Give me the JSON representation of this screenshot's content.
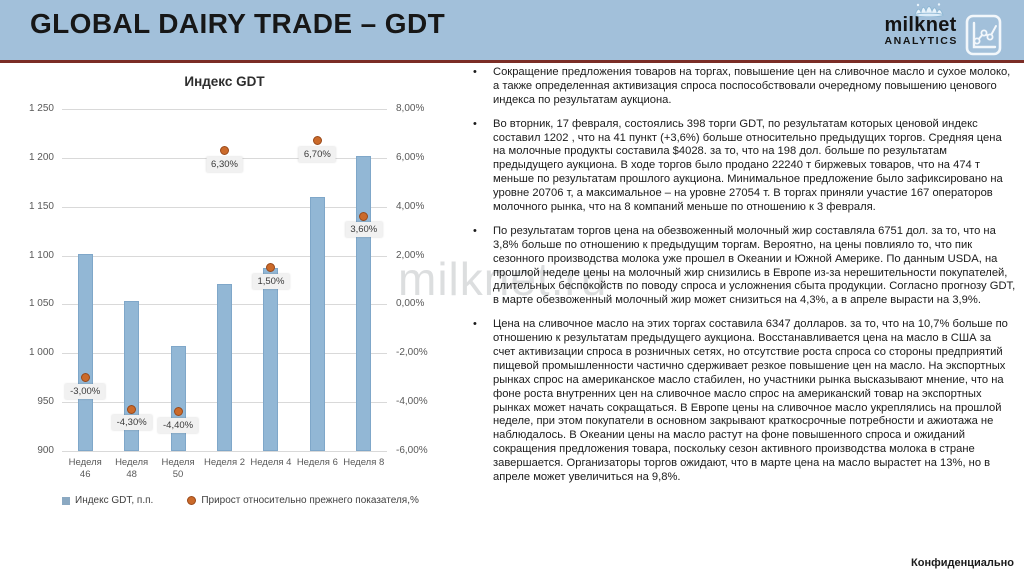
{
  "header": {
    "title": "GLOBAL DAIRY TRADE – GDT"
  },
  "logo": {
    "brand": "milknet",
    "sub": "ANALYTICS"
  },
  "colors": {
    "header_bg": "#a2c0da",
    "header_rule": "#7b2d26",
    "bar": "#92b7d5",
    "point": "#cb6a2a",
    "gridline": "#d9d9d9",
    "axis_text": "#595959"
  },
  "chart_data": {
    "type": "bar",
    "title": "Индекс GDT",
    "categories": [
      "Неделя 46",
      "Неделя 48",
      "Неделя 50",
      "Неделя 2",
      "Неделя 4",
      "Неделя 6",
      "Неделя 8"
    ],
    "series": [
      {
        "name": "Индекс GDT, п.п.",
        "type": "bar",
        "axis": "left",
        "color": "#92b7d5",
        "values": [
          1102,
          1054,
          1007,
          1071,
          1087,
          1160,
          1202
        ]
      },
      {
        "name": "Прирост относительно прежнего показателя,%",
        "type": "scatter",
        "axis": "right",
        "color": "#cb6a2a",
        "values": [
          -3.0,
          -4.3,
          -4.4,
          6.3,
          1.5,
          6.7,
          3.6
        ],
        "labels": [
          "-3,00%",
          "-4,30%",
          "-4,40%",
          "6,30%",
          "1,50%",
          "6,70%",
          "3,60%"
        ]
      }
    ],
    "left_axis": {
      "min": 900,
      "max": 1250,
      "step": 50,
      "tick_labels": [
        "1 250",
        "1 200",
        "1 150",
        "1 100",
        "1 050",
        "1 000",
        "950",
        "900"
      ]
    },
    "right_axis": {
      "min": -6,
      "max": 8,
      "step": 2,
      "tick_labels": [
        "8,00%",
        "6,00%",
        "4,00%",
        "2,00%",
        "0,00%",
        "-2,00%",
        "-4,00%",
        "-6,00%"
      ]
    },
    "grid": true,
    "legend_position": "bottom"
  },
  "commentary": {
    "bullets": [
      "Сокращение предложения товаров на торгах, повышение цен на сливочное масло и сухое молоко, а также определенная активизация спроса поспособствовали очередному повышению ценового индекса по результатам аукциона.",
      "Во вторник, 17 февраля, состоялись 398 торги GDT, по результатам которых ценовой индекс составил 1202 , что на 41 пункт (+3,6%) больше относительно предыдущих торгов. Средняя цена на молочные продукты составила $4028. за то, что на 198 дол. больше по результатам предыдущего аукциона. В ходе торгов было продано 22240 т биржевых товаров, что на 474 т меньше по результатам прошлого аукциона. Минимальное предложение было зафиксировано на уровне 20706 т, а максимальное – на уровне 27054 т. В торгах приняли участие 167 операторов молочного рынка, что на 8 компаний меньше по отношению к 3 февраля.",
      "По результатам торгов цена на обезвоженный молочный жир составляла 6751 дол. за то, что на 3,8% больше по отношению к предыдущим торгам. Вероятно, на цены повлияло то, что пик сезонного производства молока уже прошел в Океании и Южной Америке. По данным USDA, на прошлой неделе цены на молочный жир снизились в Европе из-за нерешительности покупателей, длительных беспокойств по поводу спроса и усложнения сбыта продукции. Согласно прогнозу GDT, в марте обезвоженный молочный жир может снизиться на 4,3%, а в апреле вырасти на 3,9%.",
      "Цена на сливочное масло на этих торгах составила 6347 долларов. за то, что на 10,7% больше по отношению к результатам предыдущего аукциона. Восстанавливается цена на масло в США за счет активизации спроса в розничных сетях, но отсутствие роста спроса со стороны предприятий пищевой промышленности частично сдерживает резкое повышение цен на масло. На экспортных рынках спрос на американское масло стабилен, но участники рынка высказывают мнение, что на фоне роста внутренних цен на сливочное масло спрос на американский товар на экспортных рынках может начать сокращаться. В Европе цены на сливочное масло укреплялись на прошлой неделе, при этом покупатели в основном закрывают краткосрочные потребности и ажиотажа не наблюдалось. В Океании цены на масло растут на фоне повышенного спроса и ожиданий сокращения предложения товара, поскольку сезон активного производства молока в стране завершается. Организаторы торгов ожидают, что в марте цена на масло вырастет на 13%, но в апреле может увеличиться на 9,8%."
    ]
  },
  "watermark": {
    "text": "milknet.ru"
  },
  "footer": {
    "confidential": "Конфиденциально"
  }
}
